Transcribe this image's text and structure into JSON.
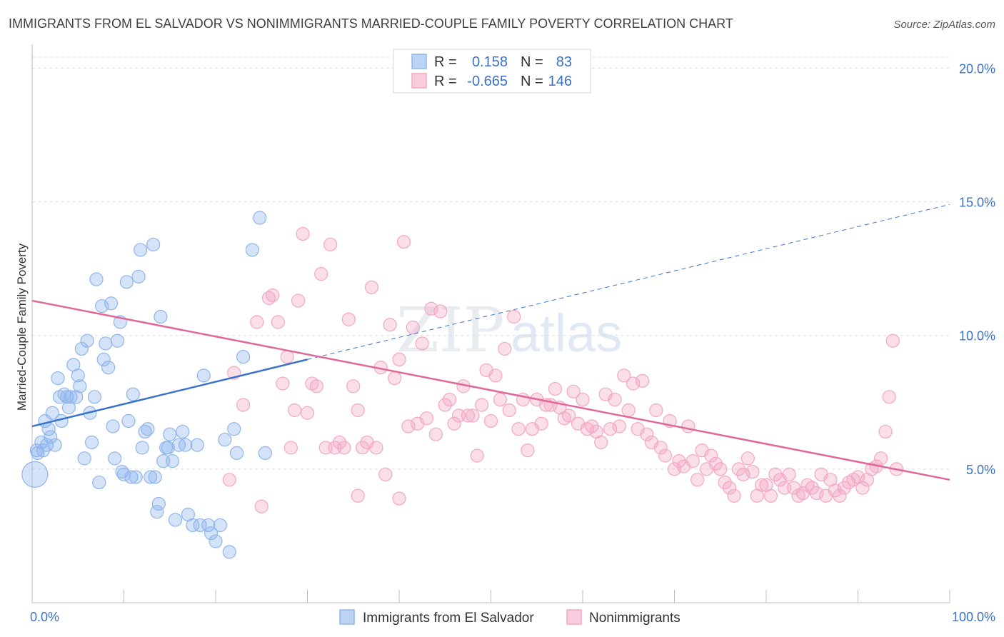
{
  "chart_data": {
    "type": "scatter",
    "title": "IMMIGRANTS FROM EL SALVADOR VS NONIMMIGRANTS MARRIED-COUPLE FAMILY POVERTY CORRELATION CHART",
    "source": "Source: ZipAtlas.com",
    "watermark": {
      "a": "ZIP",
      "b": "atlas"
    },
    "xlabel": "",
    "ylabel": "Married-Couple Family Poverty",
    "xlim": [
      0,
      100
    ],
    "ylim": [
      0,
      21
    ],
    "x_ticks": [
      {
        "value": 0,
        "label": "0.0%"
      },
      {
        "value": 100,
        "label": "100.0%"
      }
    ],
    "y_ticks": [
      {
        "value": 5,
        "label": "5.0%"
      },
      {
        "value": 10,
        "label": "10.0%"
      },
      {
        "value": 15,
        "label": "15.0%"
      },
      {
        "value": 20,
        "label": "20.0%"
      }
    ],
    "grid": true,
    "legend": {
      "placement": "top-center",
      "rows": [
        {
          "r_label": "R = ",
          "r_value": "0.158",
          "n_label": "N = ",
          "n_value": "83"
        },
        {
          "r_label": "R = ",
          "r_value": "-0.665",
          "n_label": "N = ",
          "n_value": "146"
        }
      ]
    },
    "series": [
      {
        "name": "Immigrants from El Salvador",
        "color": "#8fb5ec",
        "line_color": "#3a74c9",
        "trend": {
          "x0": 0,
          "y0": 6.6,
          "x1": 30,
          "y1": 9.1,
          "dash_to_x": 100,
          "dash_to_y": 14.9
        },
        "points": [
          [
            0.3,
            4.8
          ],
          [
            0.5,
            5.7
          ],
          [
            0.6,
            5.6
          ],
          [
            1.0,
            6.0
          ],
          [
            1.2,
            5.7
          ],
          [
            1.4,
            6.8
          ],
          [
            1.6,
            5.9
          ],
          [
            1.8,
            6.5
          ],
          [
            2.0,
            6.2
          ],
          [
            2.2,
            7.1
          ],
          [
            2.5,
            5.9
          ],
          [
            2.8,
            8.4
          ],
          [
            3.0,
            7.7
          ],
          [
            3.2,
            6.8
          ],
          [
            3.5,
            7.8
          ],
          [
            3.8,
            7.7
          ],
          [
            4.0,
            7.3
          ],
          [
            4.2,
            7.7
          ],
          [
            4.5,
            8.9
          ],
          [
            4.8,
            7.7
          ],
          [
            5.0,
            8.5
          ],
          [
            5.2,
            8.1
          ],
          [
            5.4,
            9.5
          ],
          [
            5.7,
            5.4
          ],
          [
            6.0,
            9.8
          ],
          [
            6.3,
            7.1
          ],
          [
            6.5,
            6.0
          ],
          [
            6.8,
            7.7
          ],
          [
            7.0,
            12.1
          ],
          [
            7.3,
            4.5
          ],
          [
            7.6,
            11.1
          ],
          [
            7.8,
            9.1
          ],
          [
            8.0,
            9.7
          ],
          [
            8.3,
            8.8
          ],
          [
            8.6,
            11.2
          ],
          [
            8.8,
            6.6
          ],
          [
            9.0,
            5.4
          ],
          [
            9.3,
            9.8
          ],
          [
            9.6,
            10.5
          ],
          [
            9.8,
            4.9
          ],
          [
            10.0,
            4.8
          ],
          [
            10.3,
            12.0
          ],
          [
            10.5,
            6.8
          ],
          [
            10.8,
            4.7
          ],
          [
            11.0,
            7.8
          ],
          [
            11.3,
            4.7
          ],
          [
            11.6,
            12.2
          ],
          [
            11.8,
            13.2
          ],
          [
            12.0,
            5.8
          ],
          [
            12.3,
            6.4
          ],
          [
            12.6,
            6.5
          ],
          [
            12.9,
            4.7
          ],
          [
            13.2,
            13.4
          ],
          [
            13.4,
            4.7
          ],
          [
            13.6,
            3.4
          ],
          [
            13.8,
            3.7
          ],
          [
            14.0,
            10.7
          ],
          [
            14.3,
            5.3
          ],
          [
            14.6,
            5.8
          ],
          [
            14.8,
            5.8
          ],
          [
            15.0,
            6.3
          ],
          [
            15.3,
            5.3
          ],
          [
            15.6,
            3.1
          ],
          [
            16.0,
            5.9
          ],
          [
            16.4,
            6.4
          ],
          [
            16.7,
            5.9
          ],
          [
            17.0,
            3.3
          ],
          [
            17.5,
            2.9
          ],
          [
            18.0,
            5.9
          ],
          [
            18.3,
            2.9
          ],
          [
            18.7,
            8.5
          ],
          [
            19.2,
            2.9
          ],
          [
            19.5,
            2.6
          ],
          [
            20.0,
            2.3
          ],
          [
            20.5,
            2.9
          ],
          [
            21.0,
            6.1
          ],
          [
            21.5,
            1.9
          ],
          [
            22.0,
            6.5
          ],
          [
            22.3,
            5.6
          ],
          [
            23.0,
            9.2
          ],
          [
            24.0,
            13.2
          ],
          [
            24.8,
            14.4
          ],
          [
            25.4,
            5.6
          ]
        ]
      },
      {
        "name": "Nonimmigrants",
        "color": "#f3a7c2",
        "line_color": "#e0679a",
        "trend": {
          "x0": 0,
          "y0": 11.3,
          "x1": 100,
          "y1": 4.6
        },
        "points": [
          [
            21.5,
            4.6
          ],
          [
            22.0,
            8.6
          ],
          [
            23.0,
            7.4
          ],
          [
            24.5,
            10.5
          ],
          [
            25.0,
            3.6
          ],
          [
            25.8,
            11.4
          ],
          [
            26.2,
            11.5
          ],
          [
            26.8,
            10.5
          ],
          [
            27.3,
            8.2
          ],
          [
            27.8,
            9.2
          ],
          [
            28.2,
            5.8
          ],
          [
            28.6,
            7.2
          ],
          [
            29.0,
            11.3
          ],
          [
            29.5,
            13.8
          ],
          [
            30.0,
            7.1
          ],
          [
            30.5,
            8.2
          ],
          [
            31.0,
            8.1
          ],
          [
            31.5,
            12.3
          ],
          [
            32.0,
            5.8
          ],
          [
            32.5,
            13.4
          ],
          [
            33.0,
            5.8
          ],
          [
            33.5,
            6.0
          ],
          [
            34.0,
            5.8
          ],
          [
            34.5,
            10.6
          ],
          [
            35.0,
            8.1
          ],
          [
            35.5,
            7.2
          ],
          [
            36.0,
            5.8
          ],
          [
            36.5,
            6.0
          ],
          [
            37.0,
            11.8
          ],
          [
            37.5,
            5.8
          ],
          [
            38.0,
            8.8
          ],
          [
            38.5,
            4.8
          ],
          [
            39.0,
            10.4
          ],
          [
            39.5,
            8.4
          ],
          [
            40.0,
            9.1
          ],
          [
            40.5,
            13.5
          ],
          [
            41.0,
            6.6
          ],
          [
            41.5,
            10.3
          ],
          [
            42.0,
            6.7
          ],
          [
            42.5,
            9.7
          ],
          [
            43.0,
            6.9
          ],
          [
            43.5,
            11.0
          ],
          [
            44.0,
            6.3
          ],
          [
            44.5,
            10.9
          ],
          [
            45.0,
            7.4
          ],
          [
            45.5,
            7.6
          ],
          [
            46.0,
            6.7
          ],
          [
            46.5,
            7.0
          ],
          [
            47.0,
            8.1
          ],
          [
            47.5,
            7.0
          ],
          [
            48.0,
            7.0
          ],
          [
            48.5,
            5.5
          ],
          [
            49.0,
            7.4
          ],
          [
            49.5,
            8.7
          ],
          [
            50.0,
            6.8
          ],
          [
            50.5,
            8.5
          ],
          [
            51.0,
            7.6
          ],
          [
            51.5,
            9.5
          ],
          [
            52.0,
            7.2
          ],
          [
            52.5,
            10.7
          ],
          [
            53.0,
            6.5
          ],
          [
            53.5,
            7.6
          ],
          [
            54.0,
            5.7
          ],
          [
            54.5,
            6.5
          ],
          [
            55.0,
            7.6
          ],
          [
            55.5,
            6.7
          ],
          [
            56.0,
            7.4
          ],
          [
            56.5,
            7.4
          ],
          [
            57.0,
            8.0
          ],
          [
            57.5,
            7.3
          ],
          [
            58.0,
            6.9
          ],
          [
            58.5,
            7.0
          ],
          [
            59.0,
            7.9
          ],
          [
            59.5,
            6.7
          ],
          [
            60.0,
            7.6
          ],
          [
            60.5,
            6.5
          ],
          [
            61.0,
            6.6
          ],
          [
            61.5,
            6.4
          ],
          [
            62.0,
            6.0
          ],
          [
            62.5,
            7.8
          ],
          [
            63.0,
            6.5
          ],
          [
            63.5,
            7.6
          ],
          [
            64.0,
            6.6
          ],
          [
            64.5,
            8.5
          ],
          [
            65.0,
            7.2
          ],
          [
            65.5,
            8.2
          ],
          [
            66.0,
            6.5
          ],
          [
            66.5,
            8.3
          ],
          [
            67.0,
            6.3
          ],
          [
            67.5,
            6.0
          ],
          [
            68.0,
            7.2
          ],
          [
            68.5,
            5.8
          ],
          [
            69.0,
            5.5
          ],
          [
            69.5,
            6.8
          ],
          [
            70.0,
            5.0
          ],
          [
            70.5,
            5.3
          ],
          [
            71.0,
            5.1
          ],
          [
            71.5,
            6.6
          ],
          [
            72.0,
            5.3
          ],
          [
            72.5,
            4.6
          ],
          [
            73.0,
            5.7
          ],
          [
            73.5,
            5.0
          ],
          [
            74.0,
            5.5
          ],
          [
            74.5,
            5.2
          ],
          [
            75.0,
            5.0
          ],
          [
            75.5,
            4.5
          ],
          [
            76.0,
            4.3
          ],
          [
            76.5,
            4.0
          ],
          [
            77.0,
            5.0
          ],
          [
            77.5,
            4.8
          ],
          [
            78.0,
            5.4
          ],
          [
            78.5,
            4.9
          ],
          [
            79.0,
            4.0
          ],
          [
            79.5,
            4.4
          ],
          [
            80.0,
            4.4
          ],
          [
            80.5,
            4.0
          ],
          [
            81.0,
            4.8
          ],
          [
            81.5,
            4.6
          ],
          [
            82.0,
            4.3
          ],
          [
            82.5,
            4.8
          ],
          [
            83.0,
            4.3
          ],
          [
            83.5,
            4.0
          ],
          [
            84.0,
            4.1
          ],
          [
            84.5,
            4.4
          ],
          [
            85.0,
            4.3
          ],
          [
            85.5,
            4.1
          ],
          [
            86.0,
            4.8
          ],
          [
            86.5,
            4.0
          ],
          [
            87.0,
            4.6
          ],
          [
            87.5,
            4.2
          ],
          [
            88.0,
            4.0
          ],
          [
            88.5,
            4.3
          ],
          [
            89.0,
            4.5
          ],
          [
            89.5,
            4.6
          ],
          [
            90.0,
            4.7
          ],
          [
            90.5,
            4.3
          ],
          [
            91.0,
            4.6
          ],
          [
            91.5,
            5.0
          ],
          [
            92.0,
            5.1
          ],
          [
            92.5,
            5.4
          ],
          [
            93.0,
            6.4
          ],
          [
            93.4,
            7.7
          ],
          [
            93.8,
            9.8
          ],
          [
            94.2,
            5.0
          ],
          [
            35.5,
            4.0
          ],
          [
            40.0,
            3.9
          ]
        ]
      }
    ]
  }
}
